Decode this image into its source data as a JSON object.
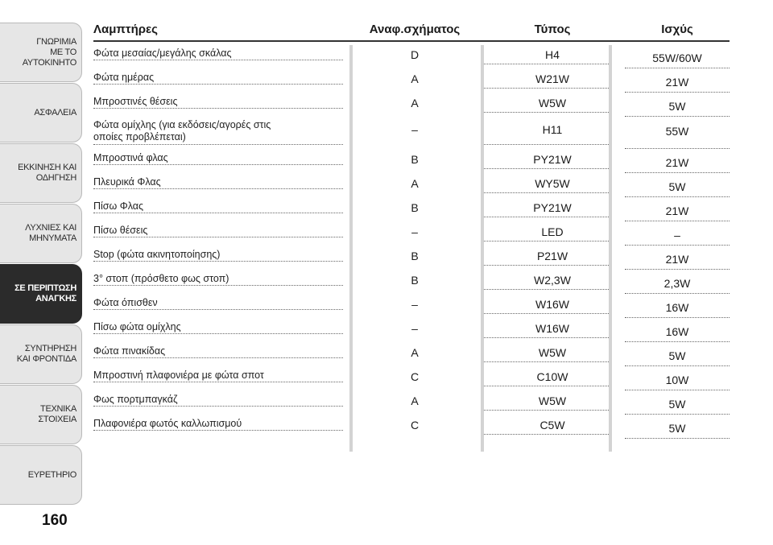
{
  "sidebar": {
    "tabs": [
      {
        "label": "ΓΝΩΡΙΜΙΑ\nΜΕ ΤΟ\nΑΥΤΟΚΙΝΗΤΟ"
      },
      {
        "label": "ΑΣΦΑΛΕΙΑ"
      },
      {
        "label": "ΕΚΚΙΝΗΣΗ ΚΑΙ\nΟΔΗΓΗΣΗ"
      },
      {
        "label": "ΛΥΧΝΙΕΣ ΚΑΙ\nΜΗΝΥΜΑΤΑ"
      },
      {
        "label": "ΣΕ ΠΕΡΙΠΤΩΣΗ\nΑΝΑΓΚΗΣ",
        "active": true
      },
      {
        "label": "ΣΥΝΤΗΡΗΣΗ\nΚΑΙ ΦΡΟΝΤΙΔΑ"
      },
      {
        "label": "ΤΕΧΝΙΚΑ\nΣΤΟΙΧΕΙΑ"
      },
      {
        "label": "ΕΥΡΕΤΗΡΙΟ"
      }
    ]
  },
  "page_number": "160",
  "table": {
    "headers": {
      "lamps": "Λαμπτήρες",
      "ref": "Αναφ.σχήματος",
      "type": "Τύπος",
      "power": "Ισχύς"
    },
    "rows": [
      {
        "lamp": "Φώτα μεσαίας/μεγάλης σκάλας",
        "ref": "D",
        "type": "H4",
        "power": "55W/60W"
      },
      {
        "lamp": "Φώτα ημέρας",
        "ref": "A",
        "type": "W21W",
        "power": "21W"
      },
      {
        "lamp": "Μπροστινές θέσεις",
        "ref": "A",
        "type": "W5W",
        "power": "5W"
      },
      {
        "lamp": "Φώτα ομίχλης (για εκδόσεις/αγορές στις\nοποίες προβλέπεται)",
        "ref": "–",
        "type": "H11",
        "power": "55W"
      },
      {
        "lamp": "Μπροστινά φλας",
        "ref": "B",
        "type": "PY21W",
        "power": "21W"
      },
      {
        "lamp": "Πλευρικά Φλας",
        "ref": "A",
        "type": "WY5W",
        "power": "5W"
      },
      {
        "lamp": "Πίσω Φλας",
        "ref": "B",
        "type": "PY21W",
        "power": "21W"
      },
      {
        "lamp": "Πίσω θέσεις",
        "ref": "–",
        "type": "LED",
        "power": "–"
      },
      {
        "lamp": "Stop (φώτα ακινητοποίησης)",
        "ref": "B",
        "type": "P21W",
        "power": "21W"
      },
      {
        "lamp": "3° στοπ (πρόσθετο φως στοπ)",
        "ref": "B",
        "type": "W2,3W",
        "power": "2,3W"
      },
      {
        "lamp": "Φώτα όπισθεν",
        "ref": "–",
        "type": "W16W",
        "power": "16W"
      },
      {
        "lamp": "Πίσω φώτα ομίχλης",
        "ref": "–",
        "type": "W16W",
        "power": "16W"
      },
      {
        "lamp": "Φώτα πινακίδας",
        "ref": "A",
        "type": "W5W",
        "power": "5W"
      },
      {
        "lamp": "Μπροστινή πλαφονιέρα με φώτα σποτ",
        "ref": "C",
        "type": "C10W",
        "power": "10W"
      },
      {
        "lamp": "Φως πορτμπαγκάζ",
        "ref": "A",
        "type": "W5W",
        "power": "5W"
      },
      {
        "lamp": "Πλαφονιέρα φωτός καλλωπισμού",
        "ref": "C",
        "type": "C5W",
        "power": "5W"
      }
    ]
  }
}
